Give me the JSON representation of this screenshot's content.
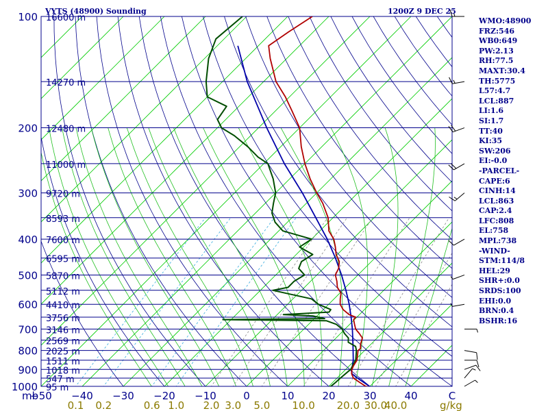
{
  "header": {
    "station": "VYTS (48900) Sounding",
    "time": "1200Z  9 DEC 25"
  },
  "indices": [
    "WMO:48900",
    "FRZ:546",
    "WB0:649",
    "PW:2.13",
    "RH:77.5",
    "MAXT:30.4",
    "TH:5775",
    "L57:4.7",
    "LCL:887",
    "LI:1.6",
    "SI:1.7",
    "TT:40",
    "KI:35",
    "SW:206",
    "EI:-0.0",
    "-PARCEL-",
    "CAPE:6",
    "CINH:14",
    "LCL:863",
    "CAP:2.4",
    "LFC:808",
    "EL:758",
    "MPL:738",
    "-WIND-",
    "STM:114/8",
    "HEL:29",
    "SHR+:0.0",
    "SRDS:100",
    "EHI:0.0",
    "BRN:0.4",
    "BSHR:16"
  ],
  "colors": {
    "isobar": "#00008b",
    "dry_adiabat": "#00008b",
    "moist_adiabat": "#1fbf1f",
    "isotherm": "#00cc00",
    "mixing_ratio": "#888888",
    "mixing_ratio_cyan": "#33aadd",
    "temperature": "#b00000",
    "dewpoint": "#004d00",
    "parcel": "#0000aa",
    "label_text": "#00008b",
    "mixing_label": "#8b7a00"
  },
  "chart_data": {
    "type": "skew-t",
    "pressure_labels": [
      {
        "p": 100,
        "label": "100",
        "height": "16600 m"
      },
      {
        "p": 150,
        "label": "",
        "height": "14270 m"
      },
      {
        "p": 200,
        "label": "200",
        "height": "12480 m"
      },
      {
        "p": 250,
        "label": "",
        "height": "11000 m"
      },
      {
        "p": 300,
        "label": "300",
        "height": "9720 m"
      },
      {
        "p": 350,
        "label": "",
        "height": "8593 m"
      },
      {
        "p": 400,
        "label": "400",
        "height": "7600 m"
      },
      {
        "p": 450,
        "label": "",
        "height": "6595 m"
      },
      {
        "p": 500,
        "label": "500",
        "height": "5870 m"
      },
      {
        "p": 550,
        "label": "",
        "height": "5112 m"
      },
      {
        "p": 600,
        "label": "600",
        "height": "4410 m"
      },
      {
        "p": 650,
        "label": "",
        "height": "3756 m"
      },
      {
        "p": 700,
        "label": "700",
        "height": "3146 m"
      },
      {
        "p": 750,
        "label": "",
        "height": "2569 m"
      },
      {
        "p": 800,
        "label": "800",
        "height": "2025 m"
      },
      {
        "p": 850,
        "label": "",
        "height": "1511 m"
      },
      {
        "p": 900,
        "label": "900",
        "height": "1018 m"
      },
      {
        "p": 950,
        "label": "",
        "height": "547 m"
      },
      {
        "p": 1000,
        "label": "1000",
        "height": "95 m"
      }
    ],
    "p_unit_label": "mb",
    "temperature_ticks": [
      -50,
      -40,
      -30,
      -20,
      -10,
      0,
      10,
      20,
      30,
      40
    ],
    "temperature_unit_label": "C",
    "mixing_ratio_ticks": [
      {
        "label": "0.1",
        "w": 0.1
      },
      {
        "label": "0.2",
        "w": 0.2
      },
      {
        "label": "0.6",
        "w": 0.6
      },
      {
        "label": "1.0",
        "w": 1.0
      },
      {
        "label": "2.0",
        "w": 2.0
      },
      {
        "label": "3.0",
        "w": 3.0
      },
      {
        "label": "5.0",
        "w": 5.0
      },
      {
        "label": "10.0",
        "w": 10.0
      },
      {
        "label": "20.0",
        "w": 20.0
      },
      {
        "label": "30.0",
        "w": 30.0
      },
      {
        "label": "40.0",
        "w": 40.0
      }
    ],
    "mixing_ratio_unit_label": "g/kg",
    "xlim_temperature_at_1000mb": [
      -50,
      50
    ],
    "ylim_pressure": [
      1000,
      100
    ],
    "temperature_profile": [
      [
        1005,
        30.4
      ],
      [
        1000,
        29.0
      ],
      [
        975,
        26.5
      ],
      [
        950,
        24.0
      ],
      [
        925,
        22.5
      ],
      [
        900,
        21.5
      ],
      [
        880,
        21.0
      ],
      [
        850,
        20.5
      ],
      [
        800,
        18.4
      ],
      [
        790,
        18.5
      ],
      [
        770,
        17.5
      ],
      [
        740,
        16.4
      ],
      [
        720,
        14.6
      ],
      [
        700,
        12.6
      ],
      [
        680,
        11.2
      ],
      [
        660,
        9.8
      ],
      [
        650,
        9.7
      ],
      [
        640,
        7.5
      ],
      [
        620,
        4.8
      ],
      [
        600,
        2.8
      ],
      [
        580,
        1.5
      ],
      [
        560,
        0.3
      ],
      [
        540,
        -2.0
      ],
      [
        520,
        -3.6
      ],
      [
        500,
        -5.5
      ],
      [
        480,
        -6.3
      ],
      [
        460,
        -7.8
      ],
      [
        440,
        -10.3
      ],
      [
        420,
        -12.3
      ],
      [
        400,
        -14.6
      ],
      [
        380,
        -17.8
      ],
      [
        350,
        -21.2
      ],
      [
        320,
        -26.0
      ],
      [
        300,
        -30.0
      ],
      [
        275,
        -35.0
      ],
      [
        250,
        -40.0
      ],
      [
        225,
        -45.0
      ],
      [
        200,
        -50.0
      ],
      [
        180,
        -56.0
      ],
      [
        165,
        -61.0
      ],
      [
        150,
        -67.0
      ],
      [
        130,
        -74.0
      ],
      [
        120,
        -77.5
      ],
      [
        110,
        -76.0
      ],
      [
        100,
        -74.0
      ]
    ],
    "dewpoint_profile": [
      [
        1005,
        20.0
      ],
      [
        1000,
        20.5
      ],
      [
        975,
        20.7
      ],
      [
        950,
        20.8
      ],
      [
        925,
        21.0
      ],
      [
        900,
        21.2
      ],
      [
        880,
        20.8
      ],
      [
        850,
        20.2
      ],
      [
        800,
        18.0
      ],
      [
        780,
        16.8
      ],
      [
        760,
        14.0
      ],
      [
        740,
        13.0
      ],
      [
        720,
        11.0
      ],
      [
        700,
        9.3
      ],
      [
        680,
        6.8
      ],
      [
        665,
        3.5
      ],
      [
        660,
        -22.0
      ],
      [
        656,
        2.5
      ],
      [
        645,
        -1.0
      ],
      [
        640,
        -8.5
      ],
      [
        630,
        2.0
      ],
      [
        620,
        1.8
      ],
      [
        600,
        -2.5
      ],
      [
        580,
        -5.5
      ],
      [
        550,
        -17.0
      ],
      [
        540,
        -14.0
      ],
      [
        520,
        -14.0
      ],
      [
        500,
        -13.0
      ],
      [
        480,
        -16.0
      ],
      [
        460,
        -17.0
      ],
      [
        440,
        -16.0
      ],
      [
        420,
        -21.0
      ],
      [
        400,
        -20.0
      ],
      [
        380,
        -29.0
      ],
      [
        360,
        -33.0
      ],
      [
        340,
        -36.0
      ],
      [
        320,
        -38.0
      ],
      [
        300,
        -40.0
      ],
      [
        275,
        -44.0
      ],
      [
        250,
        -49.0
      ],
      [
        240,
        -53.0
      ],
      [
        225,
        -58.0
      ],
      [
        210,
        -64.0
      ],
      [
        200,
        -69.0
      ],
      [
        190,
        -72.0
      ],
      [
        175,
        -73.0
      ],
      [
        165,
        -80.0
      ],
      [
        150,
        -84.0
      ],
      [
        130,
        -89.0
      ],
      [
        115,
        -92.0
      ],
      [
        100,
        -91.0
      ]
    ],
    "parcel_profile": [
      [
        1005,
        30.4
      ],
      [
        975,
        27.5
      ],
      [
        950,
        25.0
      ],
      [
        925,
        22.6
      ],
      [
        900,
        21.3
      ],
      [
        887,
        21.0
      ],
      [
        850,
        19.6
      ],
      [
        800,
        17.2
      ],
      [
        750,
        14.6
      ],
      [
        700,
        11.8
      ],
      [
        650,
        8.6
      ],
      [
        600,
        5.0
      ],
      [
        550,
        0.8
      ],
      [
        500,
        -4.0
      ],
      [
        450,
        -9.6
      ],
      [
        400,
        -16.2
      ],
      [
        350,
        -24.2
      ],
      [
        300,
        -33.5
      ],
      [
        250,
        -45.0
      ],
      [
        200,
        -58.0
      ],
      [
        150,
        -74.0
      ],
      [
        120,
        -85.0
      ]
    ],
    "wind_barbs": [
      {
        "p": 1000,
        "dir": 60,
        "spd": 5
      },
      {
        "p": 950,
        "dir": 40,
        "spd": 5
      },
      {
        "p": 900,
        "dir": 70,
        "spd": 10
      },
      {
        "p": 850,
        "dir": 90,
        "spd": 10
      },
      {
        "p": 800,
        "dir": 100,
        "spd": 10
      },
      {
        "p": 700,
        "dir": 90,
        "spd": 5
      },
      {
        "p": 600,
        "dir": 260,
        "spd": 5
      },
      {
        "p": 500,
        "dir": 250,
        "spd": 5
      },
      {
        "p": 400,
        "dir": 240,
        "spd": 10
      },
      {
        "p": 300,
        "dir": 230,
        "spd": 15
      },
      {
        "p": 250,
        "dir": 240,
        "spd": 20
      },
      {
        "p": 200,
        "dir": 250,
        "spd": 20
      },
      {
        "p": 150,
        "dir": 260,
        "spd": 15
      },
      {
        "p": 100,
        "dir": 270,
        "spd": 15
      }
    ]
  }
}
